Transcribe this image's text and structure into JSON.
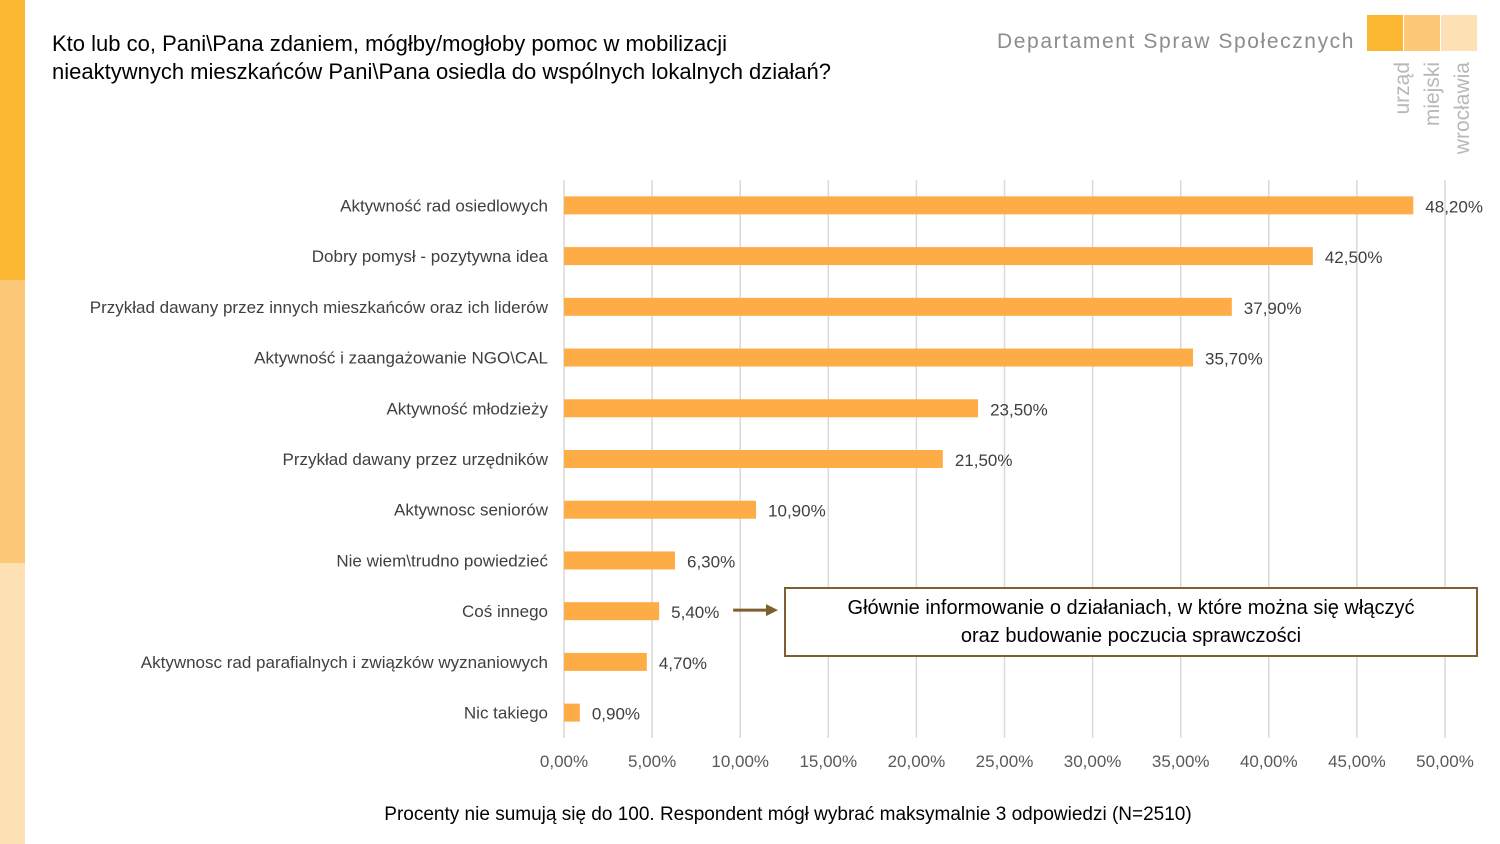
{
  "title": "Kto lub co, Pani\\Pana zdaniem, mógłby/mogłoby pomoc w mobilizacji\nnieaktywnych mieszkańców Pani\\Pana osiedla do wspólnych lokalnych działań?",
  "branding": {
    "department": "Departament Spraw Społecznych",
    "logo_words": [
      "urząd",
      "miejski",
      "wrocławia"
    ],
    "logo_colors": [
      "#fbb731",
      "#fdc877",
      "#fde0b3"
    ]
  },
  "side_stripe_colors": [
    "#fbb731",
    "#fdc877",
    "#fde0b3"
  ],
  "colors": {
    "bar": "#fdac46",
    "grid": "#d9d9d9",
    "callout_border": "#7f5f2f",
    "arrow": "#7f5f2f"
  },
  "chart_data": {
    "type": "bar",
    "orientation": "horizontal",
    "categories": [
      "Aktywność rad osiedlowych",
      "Dobry pomysł - pozytywna idea",
      "Przykład dawany przez innych mieszkańców oraz ich liderów",
      "Aktywność i zaangażowanie NGO\\CAL",
      "Aktywność młodzieży",
      "Przykład dawany przez urzędników",
      "Aktywnosc seniorów",
      "Nie wiem\\trudno powiedzieć",
      "Coś innego",
      "Aktywnosc rad parafialnych i związków wyznaniowych",
      "Nic takiego"
    ],
    "values": [
      48.2,
      42.5,
      37.9,
      35.7,
      23.5,
      21.5,
      10.9,
      6.3,
      5.4,
      4.7,
      0.9
    ],
    "value_labels": [
      "48,20%",
      "42,50%",
      "37,90%",
      "35,70%",
      "23,50%",
      "21,50%",
      "10,90%",
      "6,30%",
      "5,40%",
      "4,70%",
      "0,90%"
    ],
    "xlim": [
      0,
      50
    ],
    "x_ticks": [
      0,
      5,
      10,
      15,
      20,
      25,
      30,
      35,
      40,
      45,
      50
    ],
    "x_tick_labels": [
      "0,00%",
      "5,00%",
      "10,00%",
      "15,00%",
      "20,00%",
      "25,00%",
      "30,00%",
      "35,00%",
      "40,00%",
      "45,00%",
      "50,00%"
    ],
    "grid": true,
    "legend": "none",
    "annotation": {
      "target_category": "Coś innego",
      "text": "Głównie informowanie o działaniach, w które można się włączyć\noraz budowanie poczucia sprawczości"
    }
  },
  "footnote": "Procenty nie sumują się do 100. Respondent mógł wybrać maksymalnie 3 odpowiedzi (N=2510)"
}
